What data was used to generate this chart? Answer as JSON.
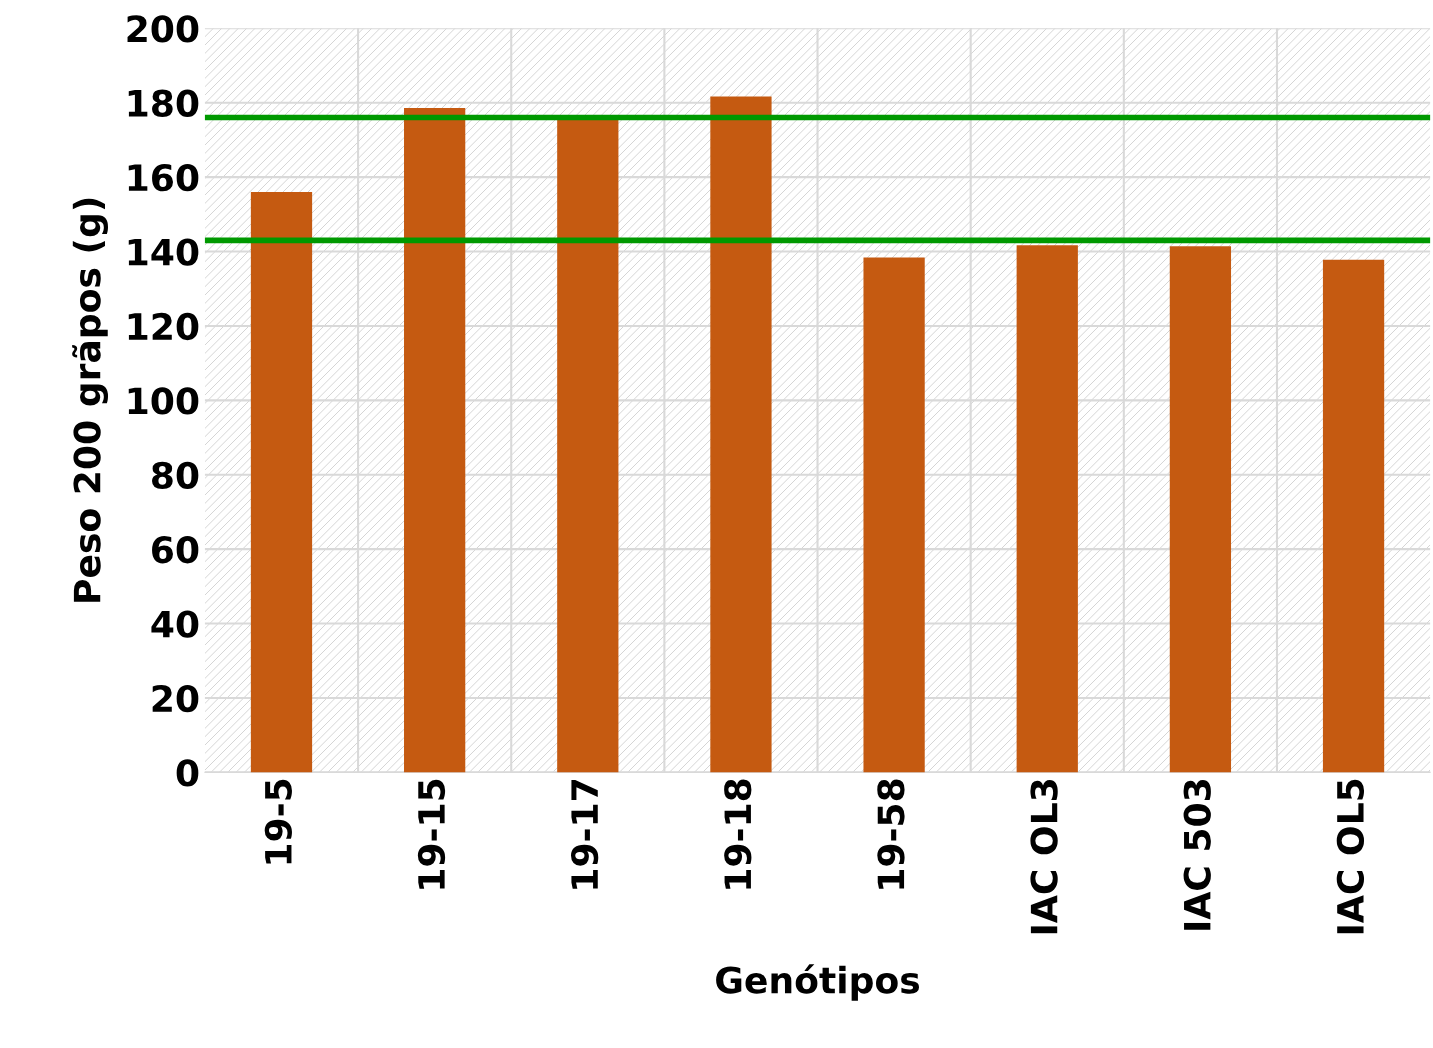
{
  "chart_data": {
    "type": "bar",
    "xlabel": "Genótipos",
    "ylabel": "Peso 200 grãpos (g)",
    "categories": [
      "19-5",
      "19-15",
      "19-17",
      "19-18",
      "19-58",
      "IAC OL3",
      "IAC 503",
      "IAC OL5"
    ],
    "values": [
      156,
      178.6,
      176,
      181.7,
      138.4,
      141.7,
      141.4,
      137.8
    ],
    "color": "#c55a11",
    "ylim": [
      0,
      200
    ],
    "yticks": [
      0,
      20,
      40,
      60,
      80,
      100,
      120,
      140,
      160,
      180,
      200
    ],
    "grid": true,
    "legend": false,
    "ref_lines": [
      {
        "axis": "y",
        "value": 176,
        "color": "#009900"
      },
      {
        "axis": "y",
        "value": 143,
        "color": "#009900"
      }
    ]
  }
}
